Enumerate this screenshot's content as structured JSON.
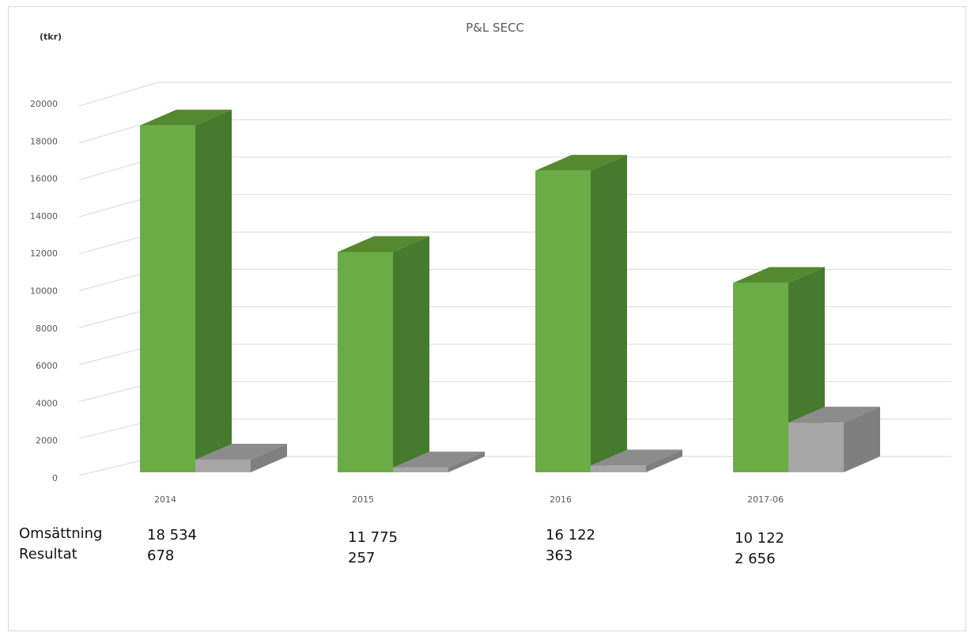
{
  "chart_data": {
    "type": "bar",
    "title": "P&L SECC",
    "ylabel": "(tkr)",
    "xlabel": "",
    "ylim": [
      0,
      20000
    ],
    "ytick_step": 2000,
    "grid": true,
    "three_d": true,
    "categories": [
      "2014",
      "2015",
      "2016",
      "2017-06"
    ],
    "series": [
      {
        "name": "Omsättning",
        "values": [
          18534,
          11775,
          16122,
          10122
        ],
        "color": "#6aac45",
        "side_color": "#467a2c",
        "top_color": "#54892f"
      },
      {
        "name": "Resultat",
        "values": [
          678,
          257,
          363,
          2656
        ],
        "color": "#a6a6a6",
        "side_color": "#7f7f7f",
        "top_color": "#8c8c8c"
      }
    ]
  },
  "data_table": {
    "row_labels": [
      "Omsättning",
      "Resultat"
    ],
    "columns": [
      {
        "omsattning": "18 534",
        "resultat": "678"
      },
      {
        "omsattning": "11 775",
        "resultat": "257"
      },
      {
        "omsattning": "16 122",
        "resultat": "363"
      },
      {
        "omsattning": "10 122",
        "resultat": "2 656"
      }
    ]
  }
}
